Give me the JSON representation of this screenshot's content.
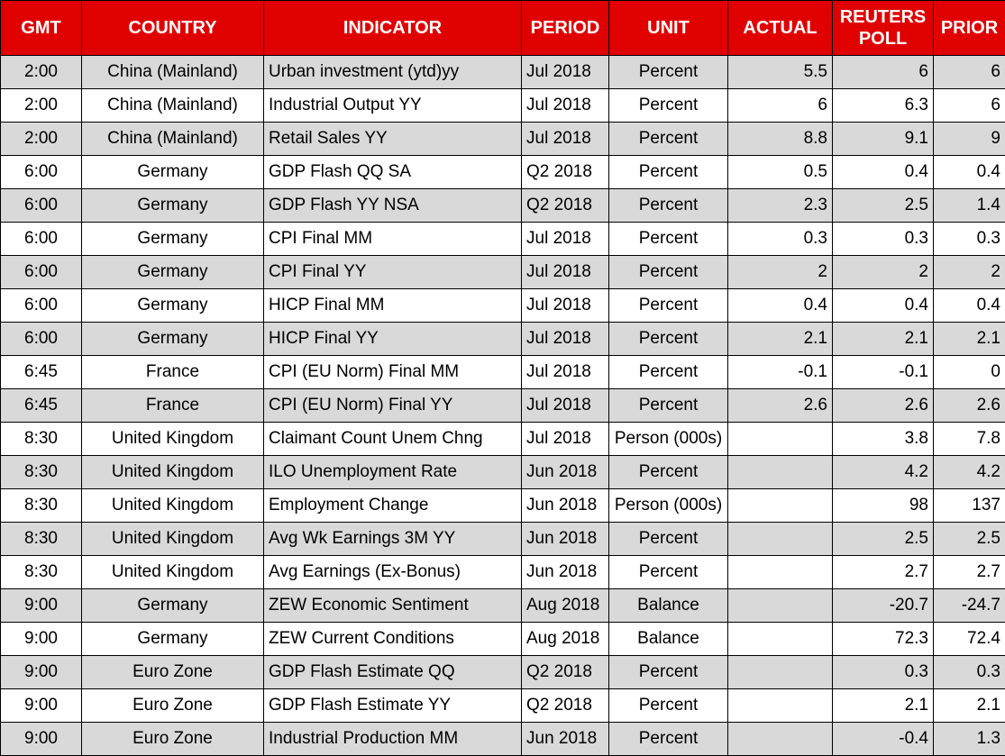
{
  "colors": {
    "header_bg": "#E00000",
    "header_text": "#FFFFFF",
    "row_stripe": "#D9D9D9",
    "row_plain": "#FFFFFF",
    "border": "#000000",
    "body_text": "#000000"
  },
  "chart_data": {
    "type": "table",
    "columns": [
      {
        "key": "gmt",
        "label": "GMT",
        "align": "center"
      },
      {
        "key": "country",
        "label": "COUNTRY",
        "align": "center"
      },
      {
        "key": "indicator",
        "label": "INDICATOR",
        "align": "left"
      },
      {
        "key": "period",
        "label": "PERIOD",
        "align": "left"
      },
      {
        "key": "unit",
        "label": "UNIT",
        "align": "center"
      },
      {
        "key": "actual",
        "label": "ACTUAL",
        "align": "right"
      },
      {
        "key": "reuters-poll",
        "label": "REUTERS POLL",
        "align": "right"
      },
      {
        "key": "prior",
        "label": "PRIOR",
        "align": "right"
      }
    ],
    "rows": [
      [
        "2:00",
        "China (Mainland)",
        "Urban investment (ytd)yy",
        "Jul 2018",
        "Percent",
        "5.5",
        "6",
        "6"
      ],
      [
        "2:00",
        "China (Mainland)",
        "Industrial Output YY",
        "Jul 2018",
        "Percent",
        "6",
        "6.3",
        "6"
      ],
      [
        "2:00",
        "China (Mainland)",
        "Retail Sales YY",
        "Jul 2018",
        "Percent",
        "8.8",
        "9.1",
        "9"
      ],
      [
        "6:00",
        "Germany",
        "GDP Flash QQ SA",
        "Q2 2018",
        "Percent",
        "0.5",
        "0.4",
        "0.4"
      ],
      [
        "6:00",
        "Germany",
        "GDP Flash YY NSA",
        "Q2 2018",
        "Percent",
        "2.3",
        "2.5",
        "1.4"
      ],
      [
        "6:00",
        "Germany",
        "CPI Final MM",
        "Jul 2018",
        "Percent",
        "0.3",
        "0.3",
        "0.3"
      ],
      [
        "6:00",
        "Germany",
        "CPI Final YY",
        "Jul 2018",
        "Percent",
        "2",
        "2",
        "2"
      ],
      [
        "6:00",
        "Germany",
        "HICP Final MM",
        "Jul 2018",
        "Percent",
        "0.4",
        "0.4",
        "0.4"
      ],
      [
        "6:00",
        "Germany",
        "HICP Final YY",
        "Jul 2018",
        "Percent",
        "2.1",
        "2.1",
        "2.1"
      ],
      [
        "6:45",
        "France",
        "CPI (EU Norm) Final MM",
        "Jul 2018",
        "Percent",
        "-0.1",
        "-0.1",
        "0"
      ],
      [
        "6:45",
        "France",
        "CPI (EU Norm) Final YY",
        "Jul 2018",
        "Percent",
        "2.6",
        "2.6",
        "2.6"
      ],
      [
        "8:30",
        "United Kingdom",
        "Claimant Count Unem Chng",
        "Jul 2018",
        "Person (000s)",
        "",
        "3.8",
        "7.8"
      ],
      [
        "8:30",
        "United Kingdom",
        "ILO Unemployment Rate",
        "Jun 2018",
        "Percent",
        "",
        "4.2",
        "4.2"
      ],
      [
        "8:30",
        "United Kingdom",
        "Employment Change",
        "Jun 2018",
        "Person (000s)",
        "",
        "98",
        "137"
      ],
      [
        "8:30",
        "United Kingdom",
        "Avg Wk Earnings 3M YY",
        "Jun 2018",
        "Percent",
        "",
        "2.5",
        "2.5"
      ],
      [
        "8:30",
        "United Kingdom",
        "Avg Earnings (Ex-Bonus)",
        "Jun 2018",
        "Percent",
        "",
        "2.7",
        "2.7"
      ],
      [
        "9:00",
        "Germany",
        "ZEW Economic Sentiment",
        "Aug 2018",
        "Balance",
        "",
        "-20.7",
        "-24.7"
      ],
      [
        "9:00",
        "Germany",
        "ZEW Current Conditions",
        "Aug 2018",
        "Balance",
        "",
        "72.3",
        "72.4"
      ],
      [
        "9:00",
        "Euro Zone",
        "GDP Flash Estimate QQ",
        "Q2 2018",
        "Percent",
        "",
        "0.3",
        "0.3"
      ],
      [
        "9:00",
        "Euro Zone",
        "GDP Flash Estimate YY",
        "Q2 2018",
        "Percent",
        "",
        "2.1",
        "2.1"
      ],
      [
        "9:00",
        "Euro Zone",
        "Industrial Production MM",
        "Jun 2018",
        "Percent",
        "",
        "-0.4",
        "1.3"
      ]
    ]
  }
}
